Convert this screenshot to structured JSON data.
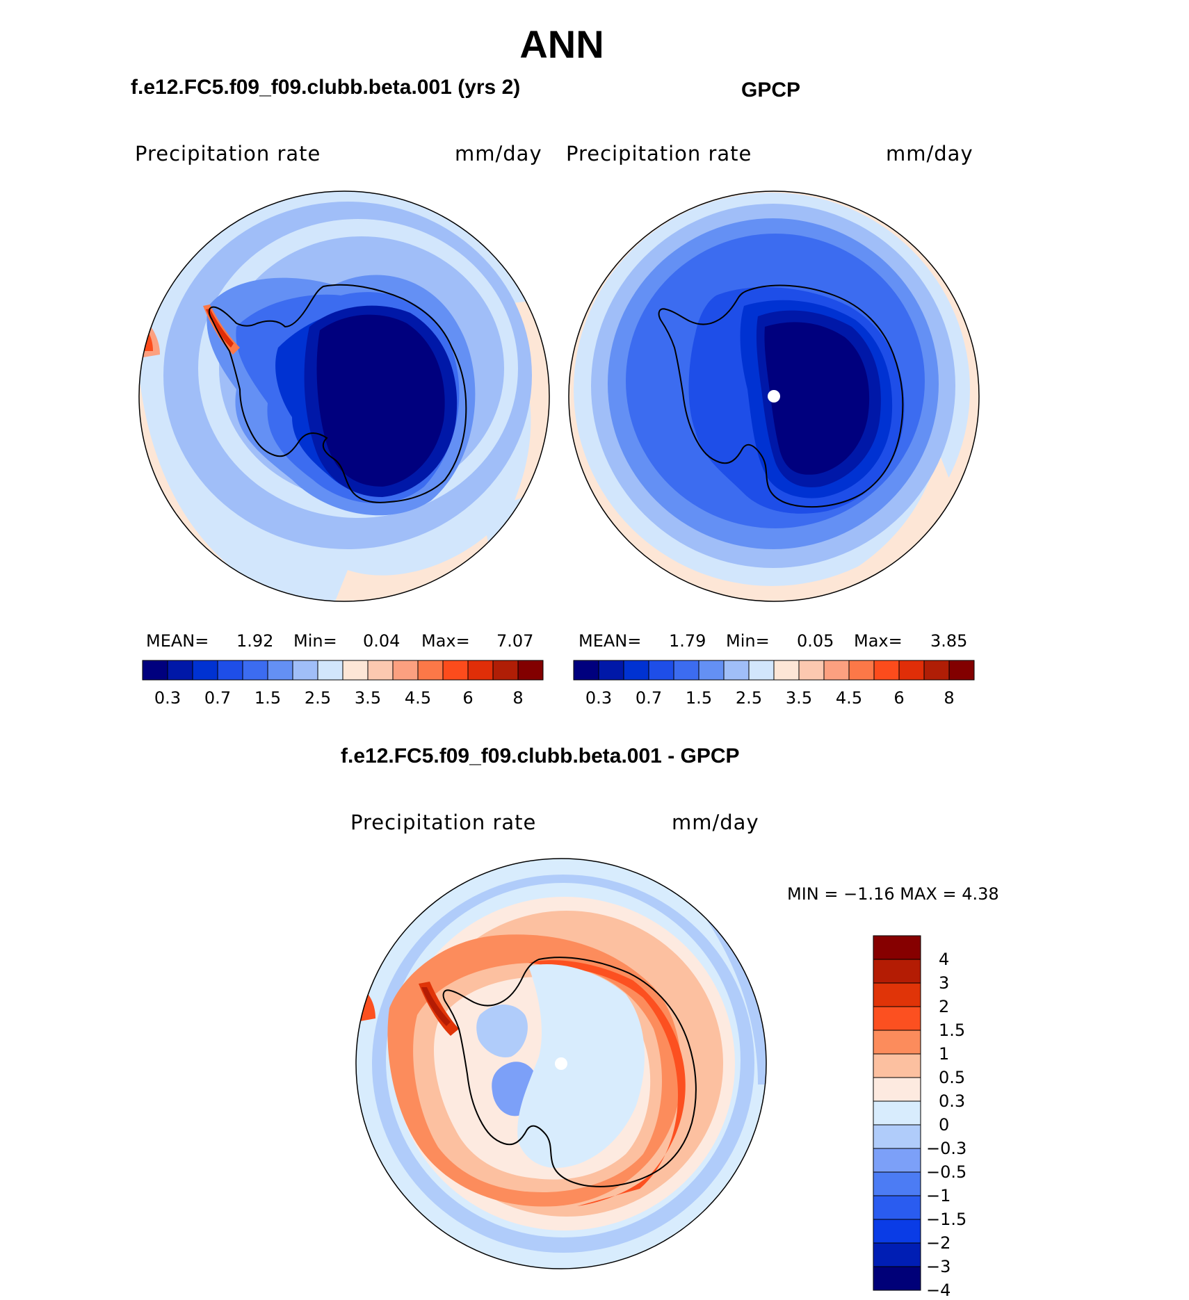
{
  "title": "ANN",
  "panels": [
    {
      "title": "f.e12.FC5.f09_f09.clubb.beta.001 (yrs 2)",
      "var_label": "Precipitation  rate",
      "units": "mm/day",
      "mean_label": "MEAN=",
      "mean": "1.92",
      "min_label": "Min=",
      "min": "0.04",
      "max_label": "Max=",
      "max": "7.07"
    },
    {
      "title": "GPCP",
      "var_label": "Precipitation  rate",
      "units": "mm/day",
      "mean_label": "MEAN=",
      "mean": "1.79",
      "min_label": "Min=",
      "min": "0.05",
      "max_label": "Max=",
      "max": "3.85"
    },
    {
      "title": "f.e12.FC5.f09_f09.clubb.beta.001 - GPCP",
      "var_label": "Precipitation  rate",
      "units": "mm/day",
      "minmax_label": "MIN  =   −1.16  MAX  =    4.38"
    }
  ],
  "colorbar_abs": {
    "colors": [
      "#00007e",
      "#0018a8",
      "#0032d2",
      "#1e4ee8",
      "#3c6cf0",
      "#6490f4",
      "#a0bef8",
      "#d2e6fc",
      "#fde6d6",
      "#fcc8b0",
      "#fca080",
      "#fc7848",
      "#fc4c1c",
      "#e02e08",
      "#b01e06",
      "#820000"
    ],
    "tick_labels": [
      "0.3",
      "0.7",
      "1.5",
      "2.5",
      "3.5",
      "4.5",
      "6",
      "8"
    ]
  },
  "colorbar_diff": {
    "colors": [
      "#000078",
      "#001eb4",
      "#0a3ce6",
      "#2a5cf0",
      "#4c7cf4",
      "#7ca0f8",
      "#b0ccfa",
      "#d8ecfd",
      "#fdeae0",
      "#fcc0a0",
      "#fc8c5c",
      "#fc5020",
      "#e03408",
      "#b41c04",
      "#860000"
    ],
    "tick_labels": [
      "4",
      "3",
      "2",
      "1.5",
      "1",
      "0.5",
      "0.3",
      "0",
      "−0.3",
      "−0.5",
      "−1",
      "−1.5",
      "−2",
      "−3",
      "−4"
    ]
  }
}
